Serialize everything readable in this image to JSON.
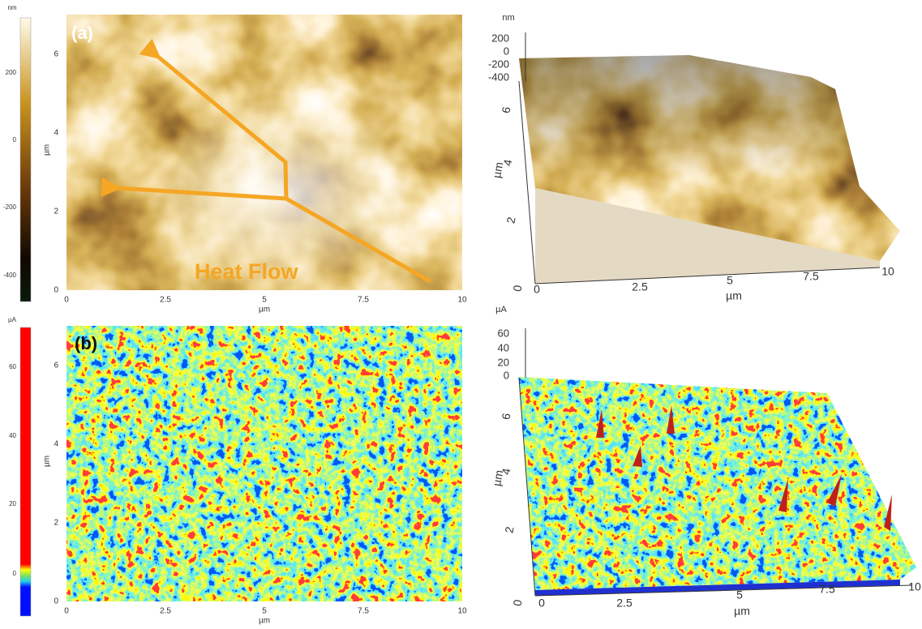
{
  "panels": [
    {
      "label": "(a)",
      "annotation": "Heat Flow",
      "map": {
        "x_ticks": [
          "0",
          "2.5",
          "5",
          "7.5",
          "10"
        ],
        "y_ticks": [
          "0",
          "2",
          "4",
          "6"
        ],
        "x_unit": "µm",
        "y_unit": "µm",
        "colorbar_unit": "nm",
        "colorbar_ticks": [
          "200",
          "0",
          "-200",
          "-400"
        ]
      },
      "surface": {
        "z_unit": "nm",
        "z_ticks": [
          "200",
          "0",
          "-200",
          "-400"
        ],
        "x_ticks": [
          "0",
          "2.5",
          "5",
          "7.5",
          "10"
        ],
        "y_ticks": [
          "0",
          "2",
          "4",
          "6"
        ],
        "x_unit": "µm",
        "y_unit": "µm"
      }
    },
    {
      "label": "(b)",
      "map": {
        "x_ticks": [
          "0",
          "2.5",
          "5",
          "7.5",
          "10"
        ],
        "y_ticks": [
          "0",
          "2",
          "4",
          "6"
        ],
        "x_unit": "µm",
        "y_unit": "µm",
        "colorbar_unit": "µA",
        "colorbar_ticks": [
          "60",
          "40",
          "20",
          "0"
        ]
      },
      "surface": {
        "z_unit": "µA",
        "z_ticks": [
          "60",
          "40",
          "20",
          "0"
        ],
        "x_ticks": [
          "0",
          "2.5",
          "5",
          "7.5",
          "10"
        ],
        "y_ticks": [
          "0",
          "2",
          "4",
          "6"
        ],
        "x_unit": "µm",
        "y_unit": "µm"
      }
    }
  ]
}
